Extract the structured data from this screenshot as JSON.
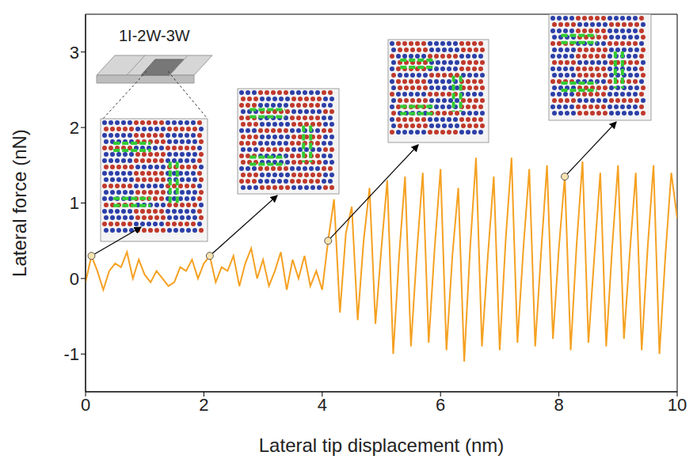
{
  "chart_data": {
    "type": "line",
    "annotation": "1I-2W-3W",
    "x_label": "Lateral tip displacement (nm)",
    "y_label": "Lateral force (nN)",
    "xlim": [
      0,
      10
    ],
    "xticks": [
      0,
      2,
      4,
      6,
      8,
      10
    ],
    "ylim": [
      -1.5,
      3.5
    ],
    "yticks": [
      -1,
      0,
      1,
      2,
      3
    ],
    "grid": false,
    "x": [
      0.0,
      0.1,
      0.2,
      0.3,
      0.4,
      0.5,
      0.6,
      0.7,
      0.8,
      0.9,
      1.0,
      1.1,
      1.2,
      1.3,
      1.4,
      1.5,
      1.6,
      1.7,
      1.8,
      1.9,
      2.0,
      2.1,
      2.2,
      2.3,
      2.4,
      2.5,
      2.6,
      2.7,
      2.8,
      2.9,
      3.0,
      3.1,
      3.2,
      3.3,
      3.4,
      3.5,
      3.6,
      3.7,
      3.8,
      3.9,
      4.0,
      4.1,
      4.2,
      4.3,
      4.4,
      4.5,
      4.6,
      4.7,
      4.8,
      4.9,
      5.0,
      5.1,
      5.2,
      5.3,
      5.4,
      5.5,
      5.6,
      5.7,
      5.8,
      5.9,
      6.0,
      6.1,
      6.2,
      6.3,
      6.4,
      6.5,
      6.6,
      6.7,
      6.8,
      6.9,
      7.0,
      7.1,
      7.2,
      7.3,
      7.4,
      7.5,
      7.6,
      7.7,
      7.8,
      7.9,
      8.0,
      8.1,
      8.2,
      8.3,
      8.4,
      8.5,
      8.6,
      8.7,
      8.8,
      8.9,
      9.0,
      9.1,
      9.2,
      9.3,
      9.4,
      9.5,
      9.6,
      9.7,
      9.8,
      9.9,
      10.0
    ],
    "series": [
      {
        "name": "1I-2W-3W",
        "color": "#f5a122",
        "values": [
          -0.05,
          0.3,
          0.1,
          -0.15,
          0.1,
          0.2,
          0.15,
          0.35,
          0.0,
          0.25,
          0.05,
          -0.05,
          0.1,
          0.0,
          -0.1,
          -0.05,
          0.15,
          0.1,
          0.25,
          0.0,
          0.2,
          0.3,
          -0.05,
          0.15,
          0.1,
          0.3,
          -0.1,
          0.2,
          0.4,
          0.0,
          0.25,
          -0.1,
          0.1,
          0.35,
          -0.15,
          0.25,
          0.0,
          0.3,
          -0.1,
          0.1,
          -0.15,
          0.5,
          1.05,
          -0.45,
          0.6,
          0.95,
          -0.55,
          0.5,
          1.2,
          -0.6,
          0.4,
          1.3,
          -1.0,
          0.3,
          1.35,
          -0.9,
          0.35,
          1.4,
          -0.85,
          0.4,
          1.45,
          -0.95,
          0.3,
          1.2,
          -1.1,
          0.4,
          1.6,
          -0.9,
          0.3,
          1.35,
          -0.95,
          0.5,
          1.6,
          -0.85,
          0.4,
          1.45,
          -0.9,
          0.35,
          1.5,
          -0.8,
          0.4,
          1.35,
          -0.95,
          0.45,
          1.55,
          -0.85,
          0.3,
          1.4,
          -0.9,
          0.4,
          1.5,
          -0.8,
          0.35,
          1.4,
          -0.95,
          0.4,
          1.5,
          -1.0,
          0.3,
          1.4,
          0.8
        ]
      }
    ],
    "highlights": [
      {
        "x": 0.1,
        "y": 0.3
      },
      {
        "x": 2.1,
        "y": 0.3
      },
      {
        "x": 4.1,
        "y": 0.5
      },
      {
        "x": 8.1,
        "y": 1.35
      }
    ]
  }
}
